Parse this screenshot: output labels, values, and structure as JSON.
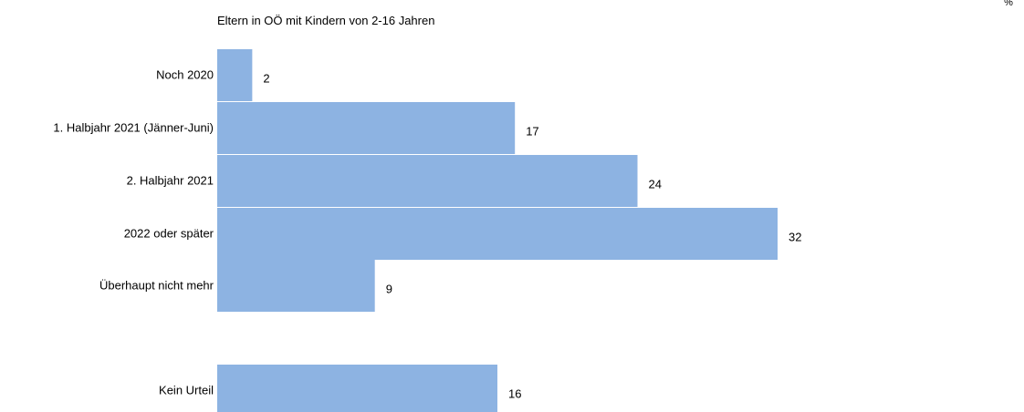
{
  "chart_data": {
    "type": "bar",
    "orientation": "horizontal",
    "subtitle": "Eltern in OÖ mit Kindern von 2-16 Jahren",
    "unit": "%",
    "categories": [
      "Noch 2020",
      "1. Halbjahr 2021 (Jänner-Juni)",
      "2. Halbjahr 2021",
      "2022 oder später",
      "Überhaupt nicht mehr",
      "Kein Urteil"
    ],
    "values": [
      2,
      17,
      24,
      32,
      9,
      16
    ],
    "xlim": [
      0,
      50
    ],
    "grid": false,
    "legend": "none",
    "bar_color": "#8db3e2"
  }
}
